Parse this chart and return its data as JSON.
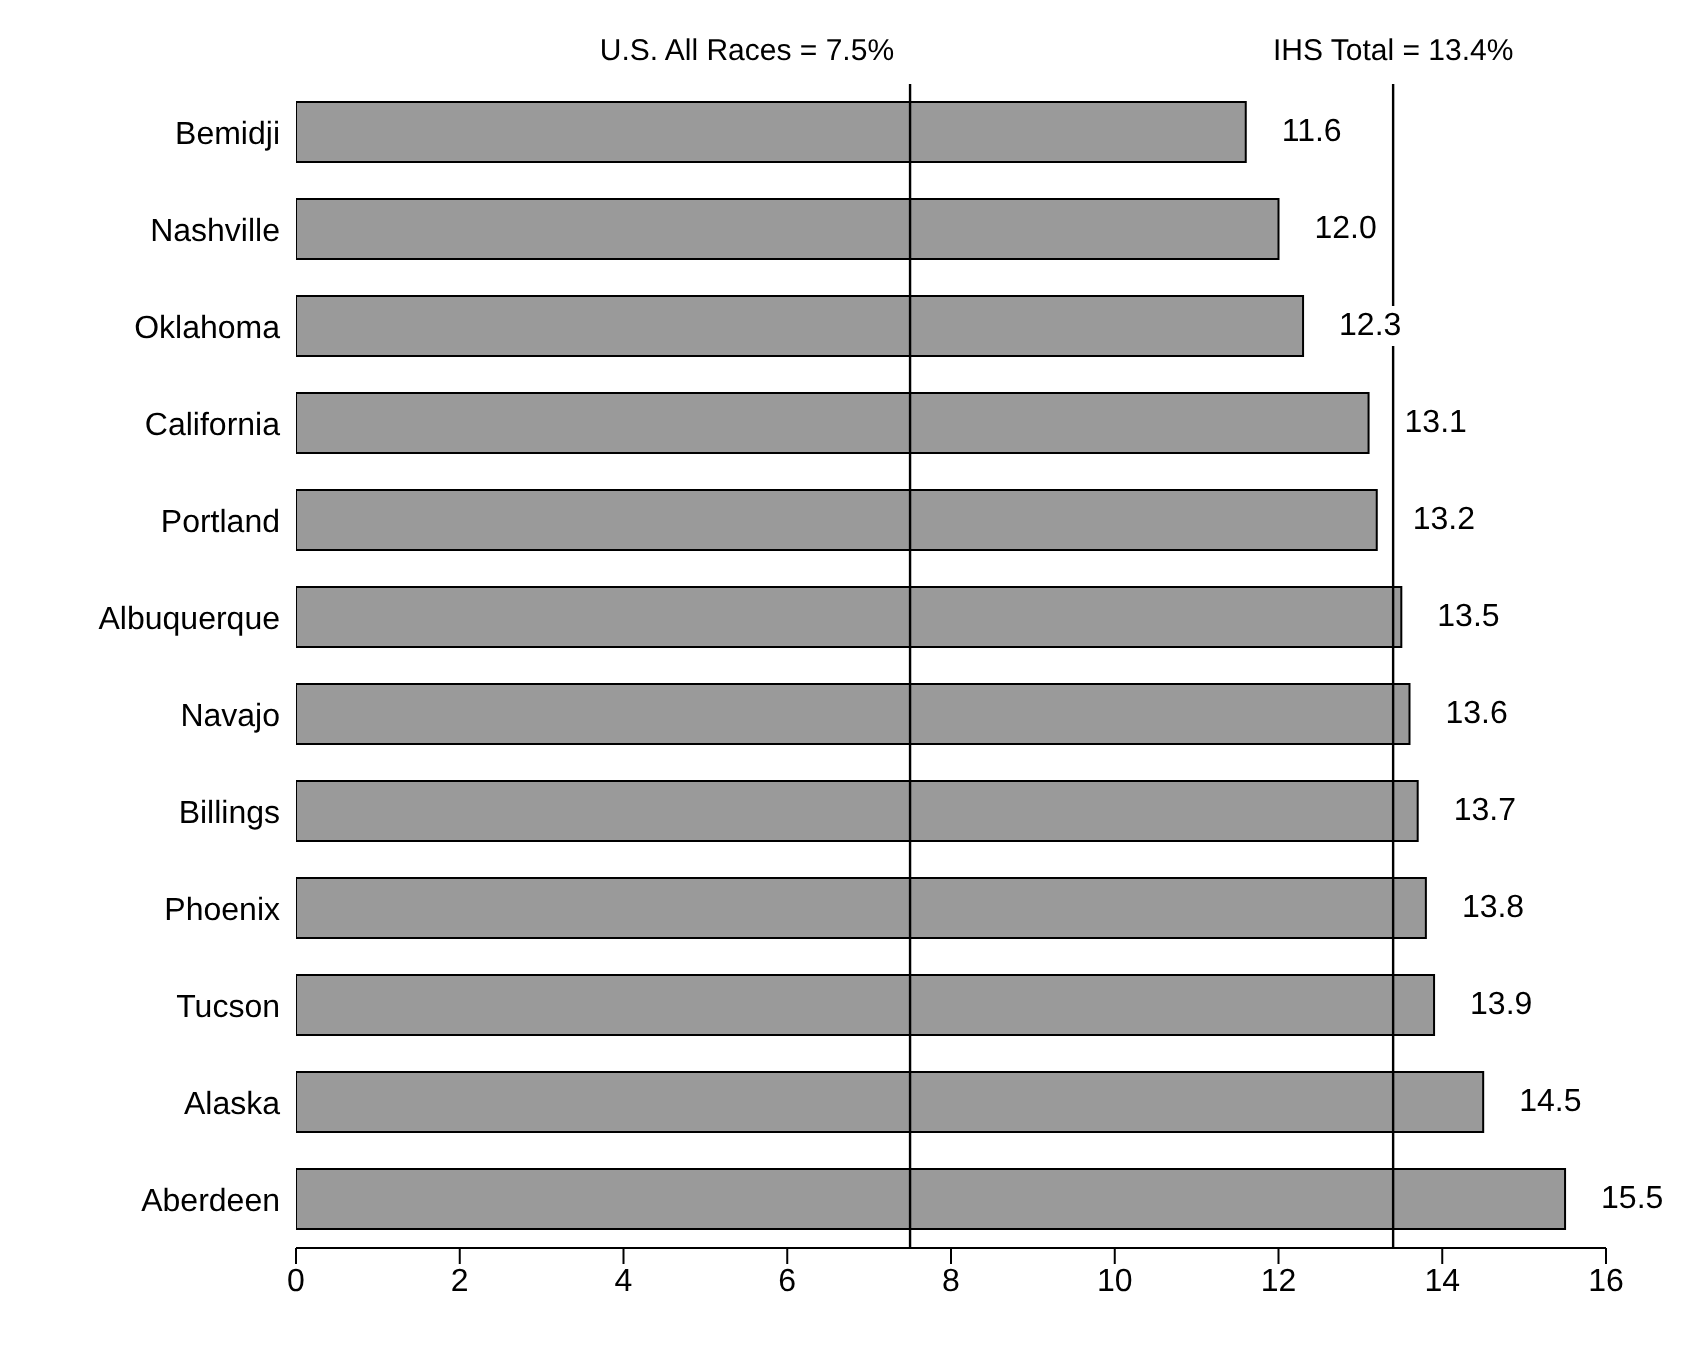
{
  "chart_data": {
    "type": "bar",
    "orientation": "horizontal",
    "categories": [
      "Bemidji",
      "Nashville",
      "Oklahoma",
      "California",
      "Portland",
      "Albuquerque",
      "Navajo",
      "Billings",
      "Phoenix",
      "Tucson",
      "Alaska",
      "Aberdeen"
    ],
    "values": [
      11.6,
      12.0,
      12.3,
      13.1,
      13.2,
      13.5,
      13.6,
      13.7,
      13.8,
      13.9,
      14.5,
      15.5
    ],
    "value_labels": [
      "11.6",
      "12.0",
      "12.3",
      "13.1",
      "13.2",
      "13.5",
      "13.6",
      "13.7",
      "13.8",
      "13.9",
      "14.5",
      "15.5"
    ],
    "color": "#9a9a9a",
    "xlim": [
      0,
      16
    ],
    "xticks": [
      0,
      2,
      4,
      6,
      8,
      10,
      12,
      14,
      16
    ],
    "ref_lines": [
      {
        "axis": "x",
        "value": 7.5,
        "label": "U.S. All Races = 7.5%",
        "color": "#000000"
      },
      {
        "axis": "x",
        "value": 13.4,
        "label": "IHS Total = 13.4%",
        "color": "#000000"
      }
    ],
    "grid": false,
    "legend": false
  }
}
